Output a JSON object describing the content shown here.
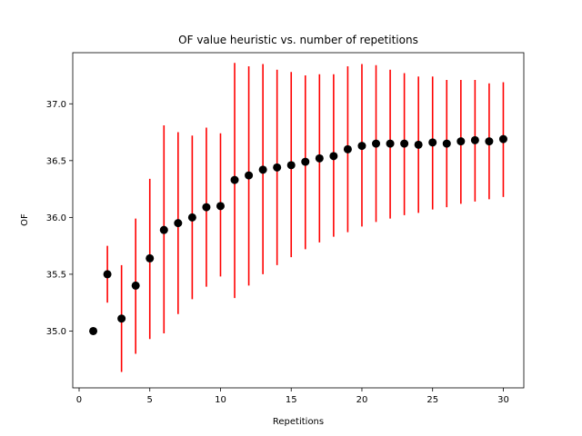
{
  "chart_data": {
    "type": "scatter",
    "title": "OF value heuristic vs. number of repetitions",
    "xlabel": "Repetitions",
    "ylabel": "OF",
    "xlim": [
      -0.45,
      31.45
    ],
    "ylim": [
      34.5,
      37.45
    ],
    "xticks": [
      0,
      5,
      10,
      15,
      20,
      25,
      30
    ],
    "yticks": [
      35.0,
      35.5,
      36.0,
      36.5,
      37.0
    ],
    "ytick_labels": [
      "35.0",
      "35.5",
      "36.0",
      "36.5",
      "37.0"
    ],
    "grid": false,
    "marker_color": "#000000",
    "errorbar_color": "#ff0000",
    "x": [
      1,
      2,
      3,
      4,
      5,
      6,
      7,
      8,
      9,
      10,
      11,
      12,
      13,
      14,
      15,
      16,
      17,
      18,
      19,
      20,
      21,
      22,
      23,
      24,
      25,
      26,
      27,
      28,
      29,
      30
    ],
    "y": [
      35.0,
      35.5,
      35.11,
      35.4,
      35.64,
      35.89,
      35.95,
      36.0,
      36.09,
      36.1,
      36.33,
      36.37,
      36.42,
      36.44,
      36.46,
      36.49,
      36.52,
      36.54,
      36.6,
      36.63,
      36.65,
      36.65,
      36.65,
      36.64,
      36.66,
      36.65,
      36.67,
      36.68,
      36.67,
      36.69
    ],
    "y_low": [
      35.0,
      35.25,
      34.64,
      34.8,
      34.93,
      34.98,
      35.15,
      35.28,
      35.39,
      35.48,
      35.29,
      35.4,
      35.5,
      35.58,
      35.65,
      35.72,
      35.78,
      35.83,
      35.87,
      35.92,
      35.96,
      35.99,
      36.02,
      36.04,
      36.07,
      36.09,
      36.12,
      36.14,
      36.16,
      36.18
    ],
    "y_high": [
      35.0,
      35.75,
      35.58,
      35.99,
      36.34,
      36.81,
      36.75,
      36.72,
      36.79,
      36.74,
      37.36,
      37.33,
      37.35,
      37.3,
      37.28,
      37.25,
      37.26,
      37.26,
      37.33,
      37.35,
      37.34,
      37.3,
      37.27,
      37.24,
      37.24,
      37.21,
      37.21,
      37.21,
      37.18,
      37.19
    ]
  }
}
